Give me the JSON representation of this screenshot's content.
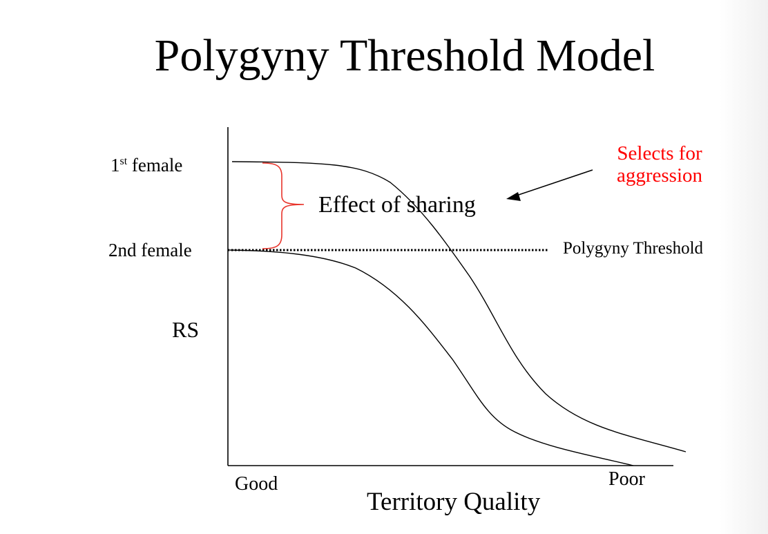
{
  "title": "Polygyny Threshold Model",
  "y_axis": {
    "label": "RS",
    "levels": {
      "first_female_number": "1",
      "first_female_suffix": "st",
      "first_female_word": " female",
      "second_female": "2nd female"
    }
  },
  "x_axis": {
    "label": "Territory Quality",
    "left_end": "Good",
    "right_end": "Poor"
  },
  "annotations": {
    "threshold_line": "Polygyny Threshold",
    "bracket_label": "Effect of sharing",
    "selects": "Selects for aggression"
  },
  "colors": {
    "text": "#000000",
    "accent": "#ff0000",
    "bracket": "#e8332a"
  }
}
